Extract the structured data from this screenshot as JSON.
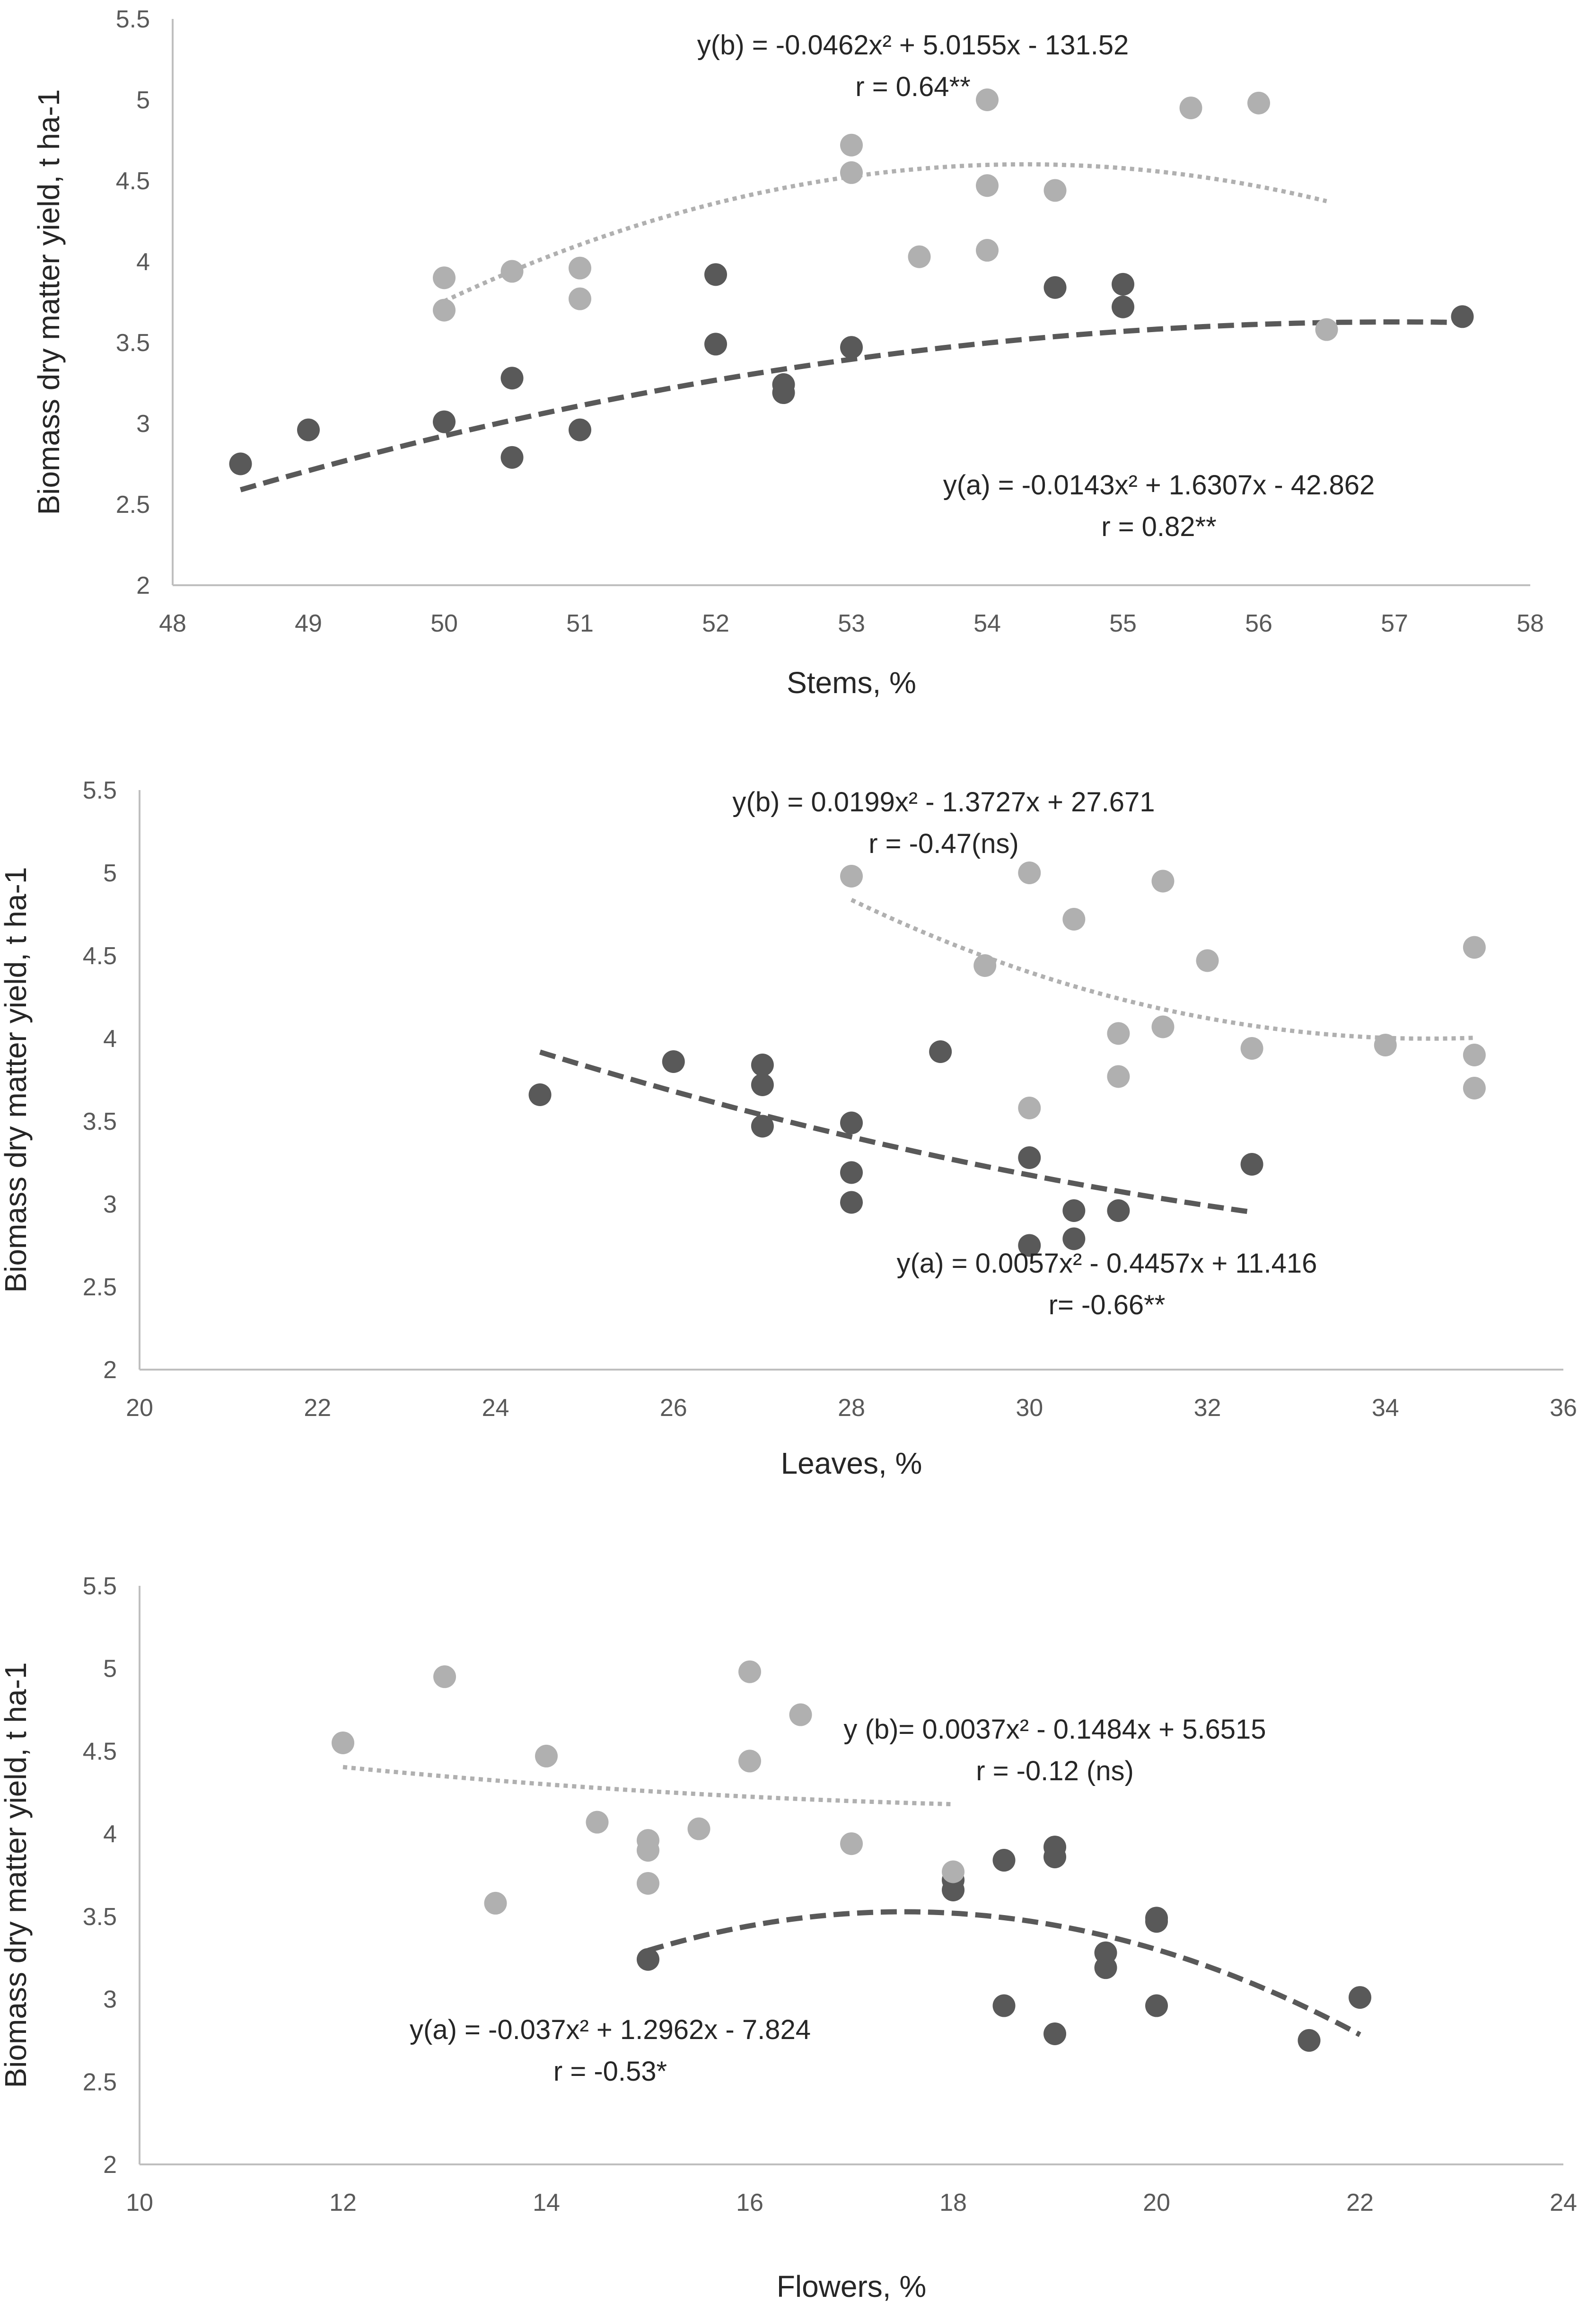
{
  "colors": {
    "series_a": "#595959",
    "series_b": "#b0b0b0",
    "axis": "#bfbfbf",
    "text": "#262626",
    "tick_text": "#595959",
    "background": "#ffffff"
  },
  "chart_data": [
    {
      "type": "scatter",
      "xlabel": "Stems, %",
      "ylabel": "Biomass dry matter yield, t ha-1",
      "xlim": [
        48,
        58
      ],
      "ylim": [
        2,
        5.5
      ],
      "xticks": [
        "48",
        "49",
        "50",
        "51",
        "52",
        "53",
        "54",
        "55",
        "56",
        "57",
        "58"
      ],
      "yticks": [
        "2",
        "2.5",
        "3",
        "3.5",
        "4",
        "4.5",
        "5",
        "5.5"
      ],
      "grid": false,
      "series": [
        {
          "key": "a",
          "color": "#595959",
          "trend": "dashed",
          "x": [
            48.5,
            49,
            50,
            50.5,
            50.5,
            51,
            52,
            52,
            52.5,
            52.5,
            53,
            54.5,
            55,
            55,
            57.5
          ],
          "y": [
            2.75,
            2.96,
            3.01,
            3.28,
            2.79,
            2.96,
            3.92,
            3.49,
            3.24,
            3.19,
            3.47,
            3.84,
            3.86,
            3.72,
            3.66
          ],
          "trendline": {
            "coefficients": [
              -0.0143,
              1.6307,
              -42.862
            ],
            "x_range": [
              48.5,
              57.5
            ]
          },
          "equation": "y(a) = -0.0143x² + 1.6307x - 42.862",
          "r_label": "r = 0.82**"
        },
        {
          "key": "b",
          "color": "#b0b0b0",
          "trend": "dotted",
          "x": [
            50,
            50,
            50.5,
            51,
            51,
            53,
            53,
            53.5,
            54,
            54,
            54,
            54.5,
            55.5,
            56,
            56.5
          ],
          "y": [
            3.9,
            3.7,
            3.94,
            3.96,
            3.77,
            4.72,
            4.55,
            4.03,
            5.0,
            4.47,
            4.07,
            4.44,
            4.95,
            4.98,
            3.58
          ],
          "trendline": {
            "coefficients": [
              -0.0462,
              5.0155,
              -131.52
            ],
            "x_range": [
              50,
              56.5
            ]
          },
          "equation": "y(b) = -0.0462x² + 5.0155x - 131.52",
          "r_label": "r = 0.64**"
        }
      ]
    },
    {
      "type": "scatter",
      "xlabel": "Leaves, %",
      "ylabel": "Biomass dry matter  yield, t ha-1",
      "xlim": [
        20,
        36
      ],
      "ylim": [
        2,
        5.5
      ],
      "xticks": [
        "20",
        "22",
        "24",
        "26",
        "28",
        "30",
        "32",
        "34",
        "36"
      ],
      "yticks": [
        "2",
        "2.5",
        "3",
        "3.5",
        "4",
        "4.5",
        "5",
        "5.5"
      ],
      "grid": false,
      "series": [
        {
          "key": "a",
          "color": "#595959",
          "trend": "dashed",
          "x": [
            24.5,
            26,
            27,
            27,
            27,
            28,
            28,
            28,
            29,
            30,
            30,
            30.5,
            30.5,
            31,
            32.5
          ],
          "y": [
            3.66,
            3.86,
            3.84,
            3.72,
            3.47,
            3.49,
            3.19,
            3.01,
            3.92,
            3.28,
            2.75,
            2.96,
            2.79,
            2.96,
            3.24
          ],
          "trendline": {
            "coefficients": [
              0.0057,
              -0.4457,
              11.416
            ],
            "x_range": [
              24.5,
              32.5
            ]
          },
          "equation": "y(a) = 0.0057x² - 0.4457x + 11.416",
          "r_label": "r= -0.66**"
        },
        {
          "key": "b",
          "color": "#b0b0b0",
          "trend": "dotted",
          "x": [
            28,
            29.5,
            30,
            30,
            30.5,
            31,
            31,
            31.5,
            31.5,
            32,
            32.5,
            34,
            35,
            35,
            35
          ],
          "y": [
            4.98,
            4.44,
            5.0,
            3.58,
            4.72,
            4.03,
            3.77,
            4.95,
            4.07,
            4.47,
            3.94,
            3.96,
            4.55,
            3.9,
            3.7
          ],
          "trendline": {
            "coefficients": [
              0.0199,
              -1.3727,
              27.671
            ],
            "x_range": [
              28,
              35
            ]
          },
          "equation": "y(b) = 0.0199x² - 1.3727x + 27.671",
          "r_label": "r = -0.47(ns)"
        }
      ]
    },
    {
      "type": "scatter",
      "xlabel": "Flowers, %",
      "ylabel": "Biomass dry matter yield, t ha-1",
      "xlim": [
        10,
        24
      ],
      "ylim": [
        2,
        5.5
      ],
      "xticks": [
        "10",
        "12",
        "14",
        "16",
        "18",
        "20",
        "22",
        "24"
      ],
      "yticks": [
        "2",
        "2.5",
        "3",
        "3.5",
        "4",
        "4.5",
        "5",
        "5.5"
      ],
      "grid": false,
      "series": [
        {
          "key": "a",
          "color": "#595959",
          "trend": "dashed",
          "x": [
            15,
            18,
            18,
            18.5,
            18.5,
            19,
            19,
            19,
            19.5,
            19.5,
            20,
            20,
            20,
            21.5,
            22
          ],
          "y": [
            3.24,
            3.72,
            3.66,
            3.84,
            2.96,
            3.92,
            3.86,
            2.79,
            3.28,
            3.19,
            3.49,
            3.47,
            2.96,
            2.75,
            3.01
          ],
          "trendline": {
            "coefficients": [
              -0.037,
              1.2962,
              -7.824
            ],
            "x_range": [
              15,
              22
            ]
          },
          "equation": "y(a) = -0.037x² + 1.2962x - 7.824",
          "r_label": "r = -0.53*"
        },
        {
          "key": "b",
          "color": "#b0b0b0",
          "trend": "dotted",
          "x": [
            12,
            13,
            13.5,
            14,
            14.5,
            15,
            15,
            15,
            15.5,
            16,
            16,
            16.5,
            17,
            18
          ],
          "y": [
            4.55,
            4.95,
            3.58,
            4.47,
            4.07,
            3.96,
            3.9,
            3.7,
            4.03,
            4.98,
            4.44,
            4.72,
            3.94,
            3.77
          ],
          "trendline": {
            "coefficients": [
              0.0037,
              -0.1484,
              5.6515
            ],
            "x_range": [
              12,
              18
            ]
          },
          "equation": "y (b)= 0.0037x² - 0.1484x + 5.6515",
          "r_label": "r = -0.12 (ns)"
        }
      ]
    }
  ]
}
